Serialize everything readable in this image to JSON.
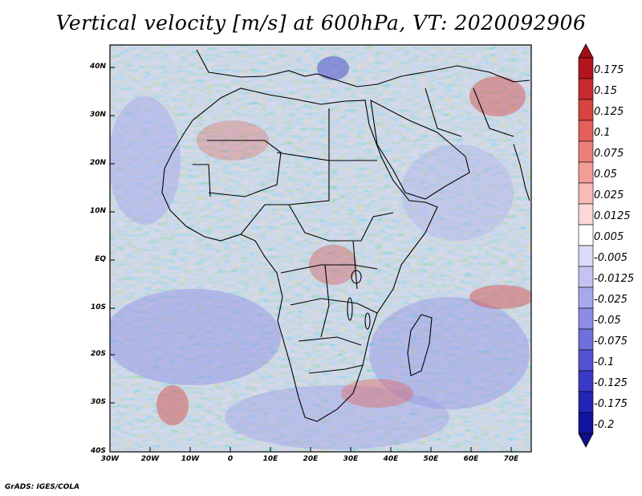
{
  "title": "Vertical velocity [m/s] at 600hPa, VT: 2020092906",
  "footer": "GrADS: IGES/COLA",
  "map": {
    "region": "Africa and surrounding oceans",
    "variable": "vertical velocity",
    "level": "600hPa",
    "valid_time": "2020092906"
  },
  "axes": {
    "lat_labels": [
      "40N",
      "30N",
      "20N",
      "10N",
      "EQ",
      "10S",
      "20S",
      "30S",
      "40S"
    ],
    "lon_labels": [
      "30W",
      "20W",
      "10W",
      "0",
      "10E",
      "20E",
      "30E",
      "40E",
      "50E",
      "60E",
      "70E"
    ],
    "lat_range": [
      -40,
      45
    ],
    "lon_range": [
      -30,
      75
    ]
  },
  "colorbar": {
    "labels": [
      "0.175",
      "0.15",
      "0.125",
      "0.1",
      "0.075",
      "0.05",
      "0.025",
      "0.0125",
      "0.005",
      "-0.005",
      "-0.0125",
      "-0.025",
      "-0.05",
      "-0.075",
      "-0.1",
      "-0.125",
      "-0.175",
      "-0.2"
    ],
    "colors": [
      "#b4141e",
      "#c82a2e",
      "#d8443f",
      "#e3605a",
      "#ec7e78",
      "#f29d98",
      "#f7bcb8",
      "#fbd9d6",
      "#ffffff",
      "#dcdcf8",
      "#c3c3f3",
      "#a8a8ec",
      "#8c8ce5",
      "#7070dc",
      "#5454d2",
      "#3a3ac6",
      "#2424b4",
      "#1414a0"
    ],
    "top_color": "#a01018",
    "bottom_color": "#0e0e8a"
  }
}
